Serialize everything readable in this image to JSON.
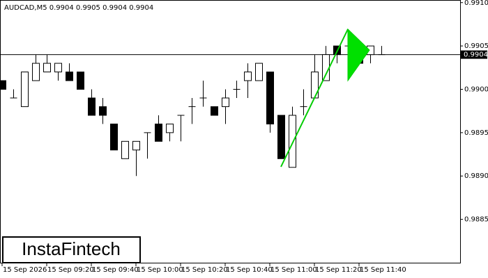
{
  "chart_data": {
    "type": "candlestick",
    "title": "AUDCAD,M5  0.9904 0.9905 0.9904 0.9904",
    "categories": [
      "15 Sep 2026",
      null,
      null,
      null,
      "15 Sep 09:20",
      null,
      null,
      null,
      "15 Sep 09:40",
      null,
      null,
      null,
      "15 Sep 10:00",
      null,
      null,
      null,
      "15 Sep 10:20",
      null,
      null,
      null,
      "15 Sep 10:40",
      null,
      null,
      null,
      "15 Sep 11:00",
      null,
      null,
      null,
      "15 Sep 11:20",
      null,
      null,
      null,
      "15 Sep 11:40",
      null,
      null
    ],
    "open": [
      0.9901,
      0.9899,
      0.9898,
      0.9901,
      0.9902,
      0.9902,
      0.9902,
      0.9902,
      0.9899,
      0.9898,
      0.9896,
      0.9892,
      0.9893,
      0.9895,
      0.9896,
      0.9895,
      0.9897,
      0.9898,
      0.9899,
      0.9898,
      0.9898,
      0.99,
      0.9901,
      0.9901,
      0.9902,
      0.9897,
      0.9891,
      0.9898,
      0.9899,
      0.9901,
      0.9905,
      0.9905,
      0.9904,
      0.9904,
      0.9904
    ],
    "high": [
      0.9901,
      0.99,
      0.9902,
      0.9904,
      0.9904,
      0.9903,
      0.9903,
      0.9902,
      0.99,
      0.9899,
      0.9896,
      0.9894,
      0.9894,
      0.9895,
      0.9897,
      0.9896,
      0.9897,
      0.9899,
      0.9901,
      0.9898,
      0.99,
      0.9901,
      0.9903,
      0.9903,
      0.9902,
      0.9897,
      0.9898,
      0.99,
      0.9904,
      0.9905,
      0.9905,
      0.9906,
      0.9905,
      0.9905,
      0.9905
    ],
    "low": [
      0.99,
      0.9899,
      0.9898,
      0.9901,
      0.9902,
      0.9901,
      0.9901,
      0.99,
      0.9897,
      0.9896,
      0.9893,
      0.9892,
      0.989,
      0.9892,
      0.9894,
      0.9894,
      0.9894,
      0.9896,
      0.9898,
      0.9897,
      0.9896,
      0.9899,
      0.9899,
      0.9901,
      0.9895,
      0.9892,
      0.9891,
      0.9897,
      0.9899,
      0.9901,
      0.9903,
      0.9904,
      0.9903,
      0.9903,
      0.9904
    ],
    "close": [
      0.99,
      0.9899,
      0.9902,
      0.9903,
      0.9903,
      0.9903,
      0.9901,
      0.99,
      0.9897,
      0.9897,
      0.9893,
      0.9894,
      0.9894,
      0.9895,
      0.9894,
      0.9896,
      0.9897,
      0.9898,
      0.9899,
      0.9897,
      0.9899,
      0.99,
      0.9902,
      0.9903,
      0.9896,
      0.9892,
      0.9897,
      0.9898,
      0.9902,
      0.9904,
      0.9904,
      0.9905,
      0.9903,
      0.9905,
      0.9904
    ],
    "up_color": "#ffffff",
    "down_color": "#000000",
    "ylim": [
      0.988,
      0.99103
    ],
    "yticks": [
      {
        "value": 0.991,
        "label": "0.9910"
      },
      0.9905,
      {
        "value": 0.99,
        "label": "0.9900"
      },
      0.9895,
      {
        "value": 0.989,
        "label": "0.9890"
      },
      0.9885
    ],
    "current_price": 0.9904,
    "brand": "InstaFintech"
  }
}
